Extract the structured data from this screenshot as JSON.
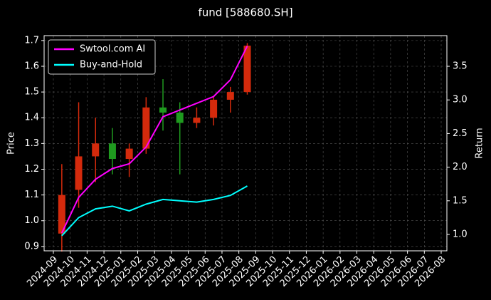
{
  "chart_data": {
    "type": "candlestick",
    "title": "fund [588680.SH]",
    "ylabel": "Price",
    "y2label": "Return",
    "x": [
      "2024-09",
      "2024-10",
      "2024-11",
      "2024-12",
      "2025-01",
      "2025-02",
      "2025-03",
      "2025-04",
      "2025-05",
      "2025-06",
      "2025-07",
      "2025-08"
    ],
    "open": [
      0.95,
      1.12,
      1.25,
      1.3,
      1.24,
      1.28,
      1.44,
      1.42,
      1.38,
      1.4,
      1.47,
      1.5
    ],
    "high": [
      1.22,
      1.46,
      1.4,
      1.36,
      1.3,
      1.48,
      1.55,
      1.46,
      1.44,
      1.48,
      1.52,
      1.69
    ],
    "low": [
      0.88,
      1.05,
      1.15,
      1.18,
      1.17,
      1.26,
      1.35,
      1.18,
      1.36,
      1.37,
      1.42,
      1.49
    ],
    "close": [
      1.1,
      1.25,
      1.3,
      1.24,
      1.28,
      1.44,
      1.42,
      1.38,
      1.4,
      1.47,
      1.5,
      1.68
    ],
    "up_color": "#d42a0c",
    "down_color": "#1f9a1f",
    "series": [
      {
        "name": "Swtool.com AI",
        "color": "#ff00ff",
        "axis": "y2",
        "values": [
          1.02,
          1.55,
          1.82,
          1.98,
          2.05,
          2.3,
          2.75,
          2.85,
          2.95,
          3.05,
          3.3,
          3.8
        ]
      },
      {
        "name": "Buy-and-Hold",
        "color": "#00ffff",
        "axis": "y2",
        "values": [
          0.98,
          1.25,
          1.38,
          1.42,
          1.35,
          1.45,
          1.52,
          1.5,
          1.48,
          1.52,
          1.58,
          1.72
        ]
      }
    ],
    "xticks": [
      "2024-09",
      "2024-10",
      "2024-11",
      "2024-12",
      "2025-01",
      "2025-02",
      "2025-03",
      "2025-04",
      "2025-05",
      "2025-06",
      "2025-07",
      "2025-08",
      "2025-09",
      "2025-10",
      "2025-11",
      "2025-12",
      "2026-01",
      "2026-02",
      "2026-03",
      "2026-04",
      "2026-05",
      "2026-06",
      "2026-07",
      "2026-08"
    ],
    "xlim": [
      "2024-09",
      "2026-08"
    ],
    "ylim": [
      0.883,
      1.719
    ],
    "yticks": [
      0.9,
      {
        "value": 1.0,
        "label": "1.0"
      },
      1.1,
      1.2,
      1.3,
      1.4,
      1.5,
      1.6,
      1.7
    ],
    "y2lim": [
      0.756,
      3.956
    ],
    "y2ticks": [
      {
        "value": 1.0,
        "label": "1.0"
      },
      1.5,
      {
        "value": 2.0,
        "label": "2.0"
      },
      2.5,
      {
        "value": 3.0,
        "label": "3.0"
      },
      3.5
    ],
    "grid": true,
    "legend": "upper left"
  }
}
